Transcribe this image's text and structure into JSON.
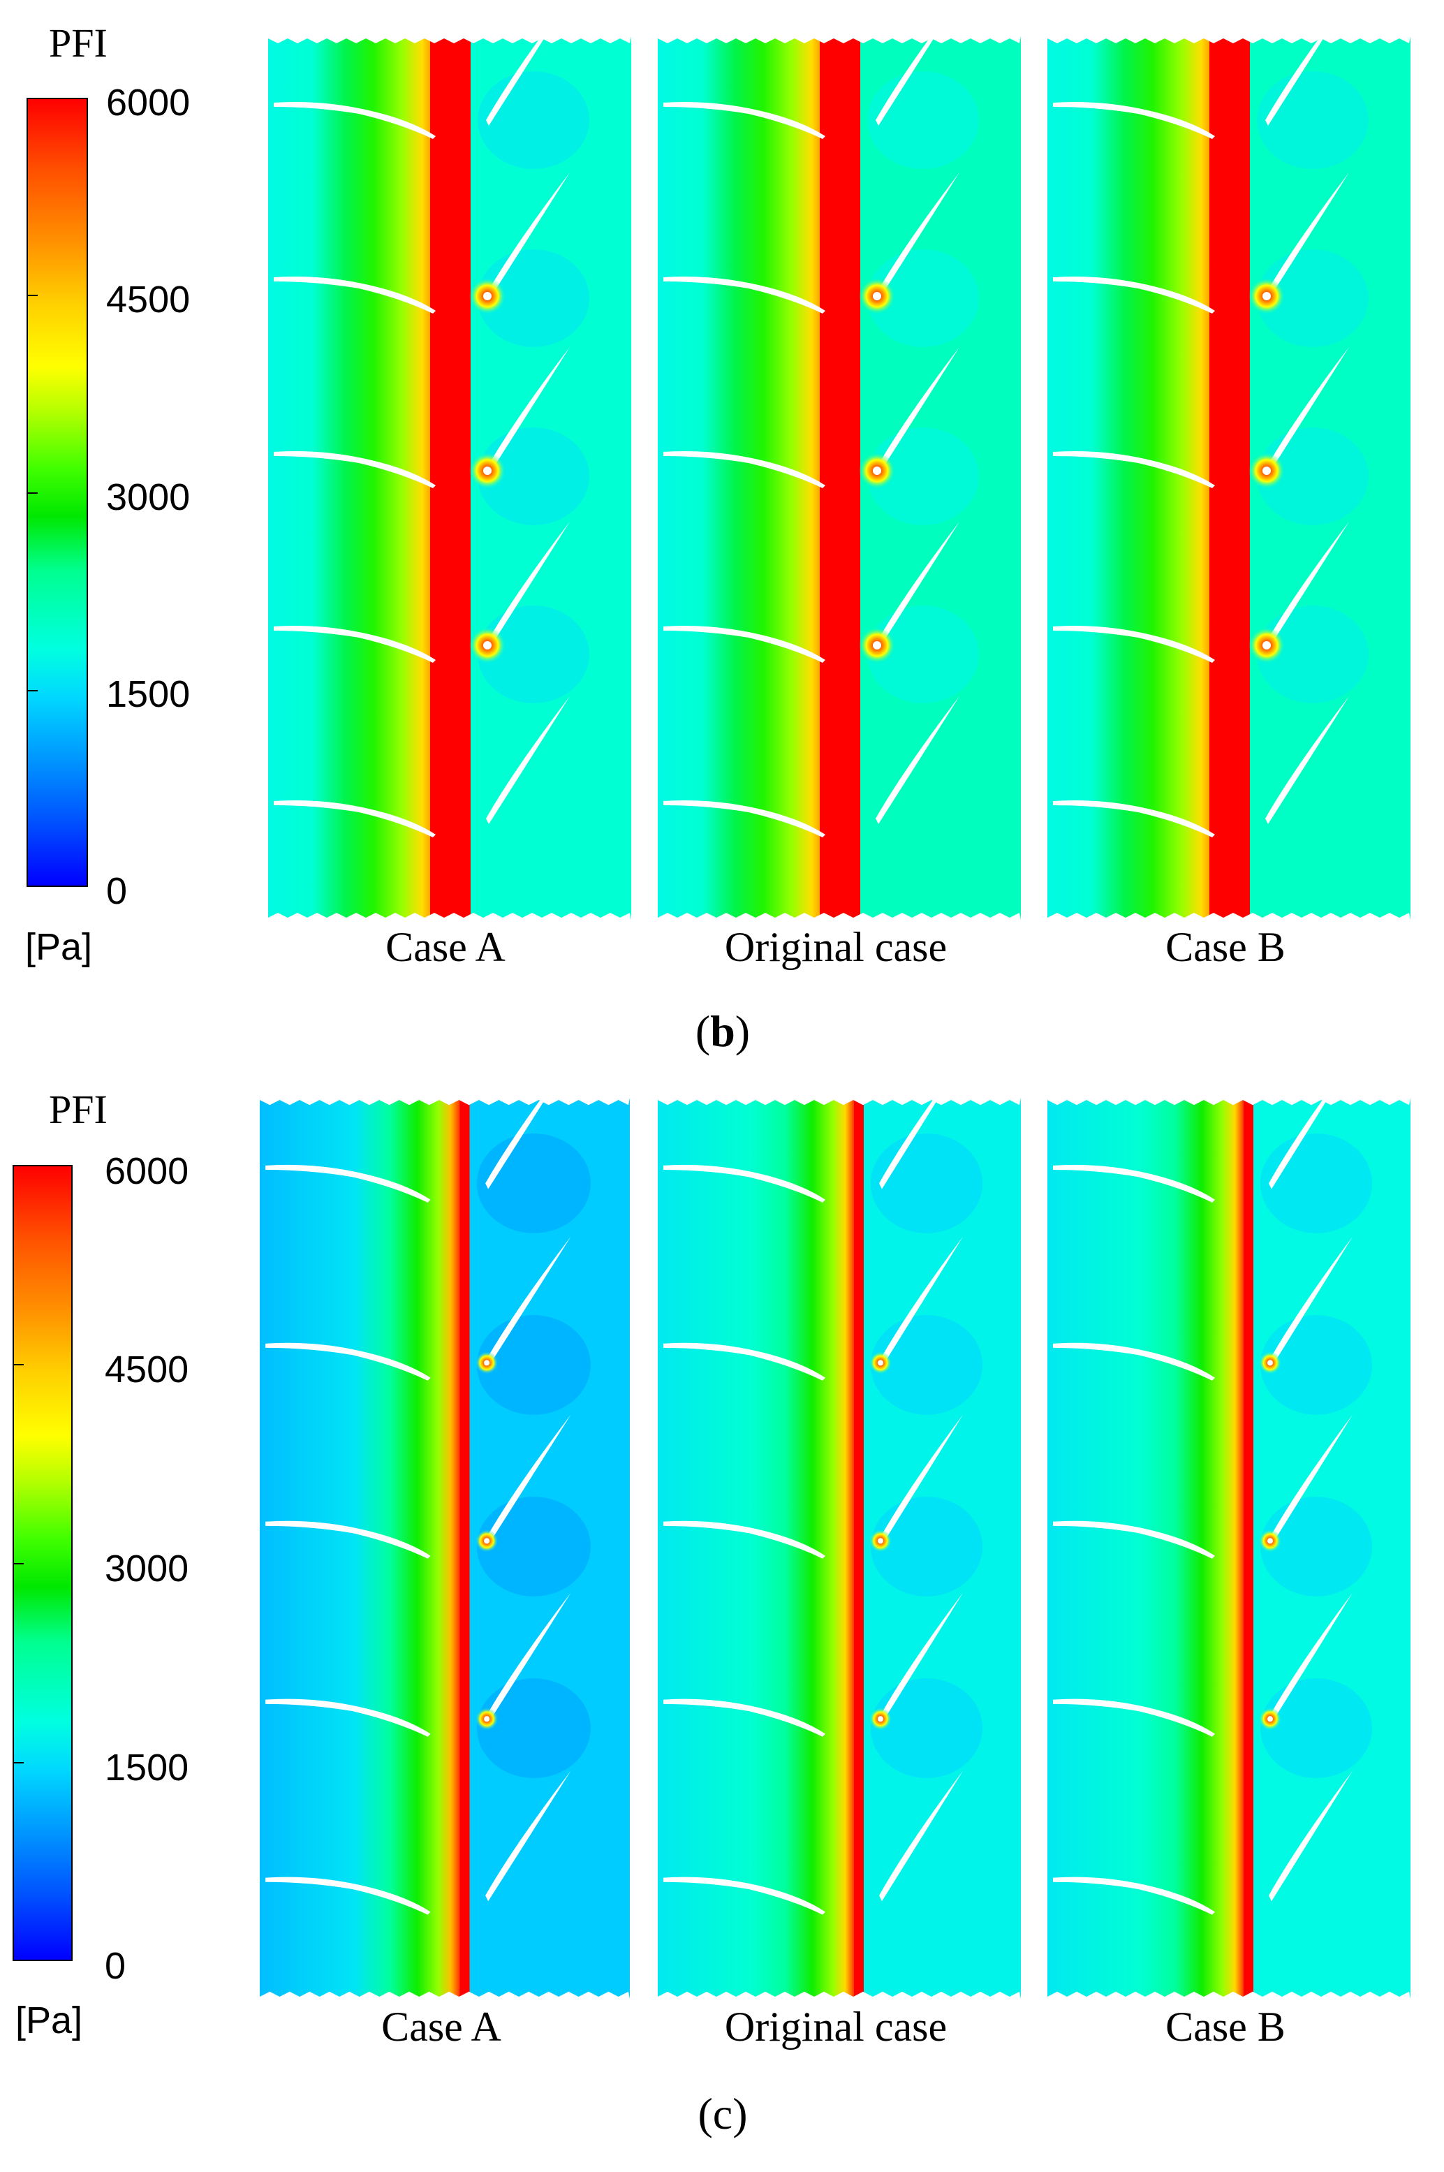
{
  "colorbar": {
    "title": "PFI",
    "unit": "[Pa]",
    "ticks": [
      "6000",
      "4500",
      "3000",
      "1500",
      "0"
    ],
    "min": 0,
    "max": 6000
  },
  "panel_labels": [
    "Case A",
    "Original case",
    "Case B"
  ],
  "figures": [
    {
      "label": "b",
      "cases": [
        {
          "name": "Case A",
          "red_band_strength": 1.0,
          "ambient_level": 1900
        },
        {
          "name": "Original case",
          "red_band_strength": 1.0,
          "ambient_level": 2050
        },
        {
          "name": "Case B",
          "red_band_strength": 1.0,
          "ambient_level": 2000
        }
      ]
    },
    {
      "label": "c",
      "cases": [
        {
          "name": "Case A",
          "red_band_strength": 0.75,
          "ambient_level": 1350
        },
        {
          "name": "Original case",
          "red_band_strength": 0.7,
          "ambient_level": 1700
        },
        {
          "name": "Case B",
          "red_band_strength": 0.7,
          "ambient_level": 1750
        }
      ]
    }
  ],
  "colors": {
    "red": "#ff0000",
    "green": "#00e800",
    "cyan": "#00e8f0",
    "blue": "#0000ff"
  }
}
